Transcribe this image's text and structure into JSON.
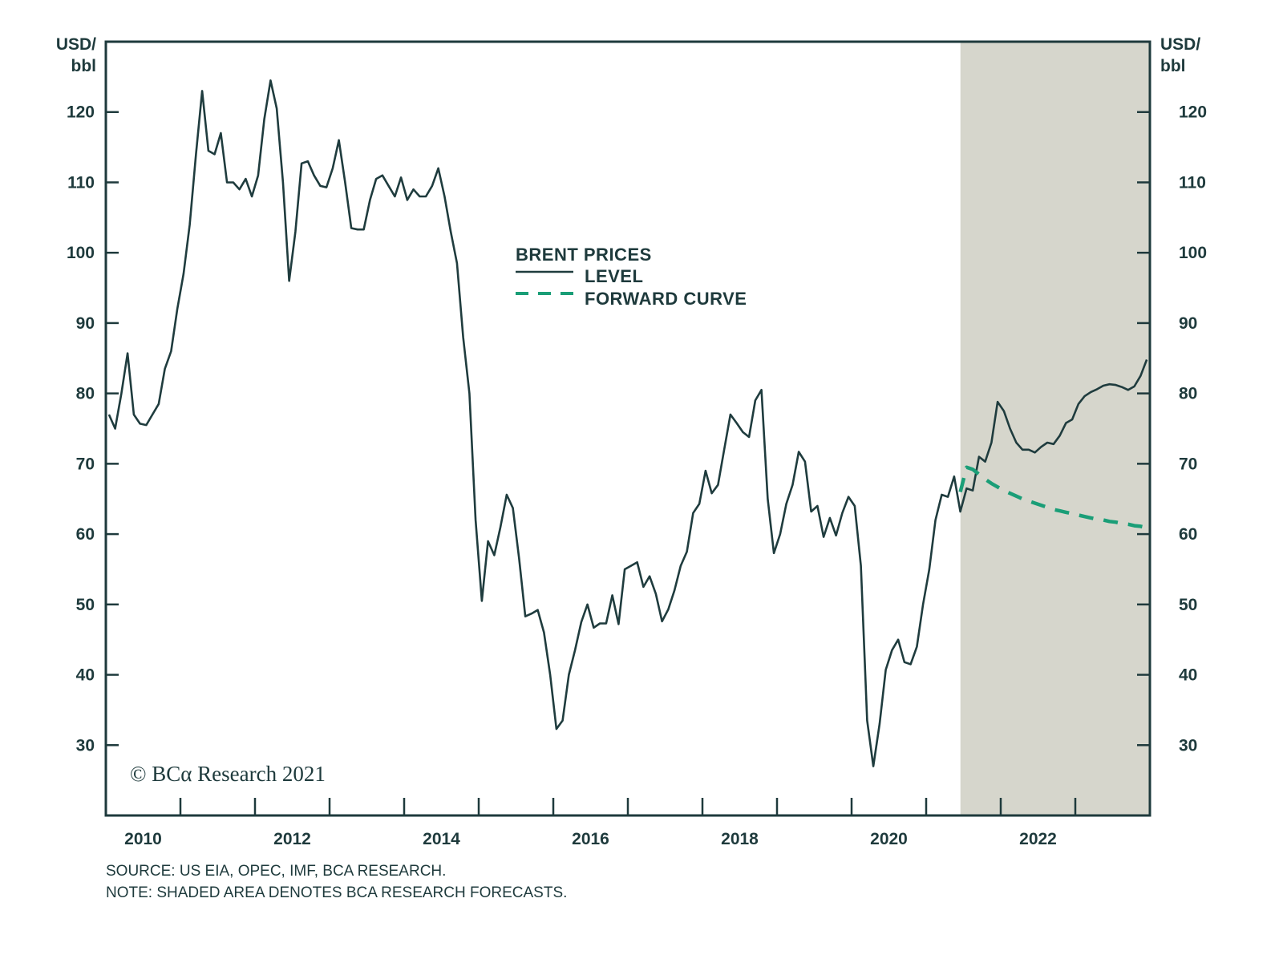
{
  "chart_data": {
    "type": "line",
    "title": "",
    "ylabel_left": "USD/ bbl",
    "ylabel_right": "USD/ bbl",
    "ylim": [
      20,
      130
    ],
    "yticks": [
      30,
      40,
      50,
      60,
      70,
      80,
      90,
      100,
      110,
      120
    ],
    "xlim": [
      "2010-01",
      "2023-12"
    ],
    "xtick_labels": [
      "2010",
      "2012",
      "2014",
      "2016",
      "2018",
      "2020",
      "2022"
    ],
    "grid": false,
    "legend": {
      "title": "BRENT PRICES",
      "placement": "center",
      "entries": [
        "LEVEL",
        "FORWARD CURVE"
      ]
    },
    "shaded_region": {
      "from": "2021-06",
      "to": "2023-12",
      "meaning": "BCA RESEARCH FORECASTS",
      "color": "#d6d6cc"
    },
    "colors": {
      "level": "#1f3c3e",
      "forward_curve": "#1a9e77",
      "text": "#1e3a3c"
    },
    "series": [
      {
        "name": "LEVEL",
        "style": "solid",
        "x": [
          "2010-01",
          "2010-02",
          "2010-03",
          "2010-04",
          "2010-05",
          "2010-06",
          "2010-07",
          "2010-08",
          "2010-09",
          "2010-10",
          "2010-11",
          "2010-12",
          "2011-01",
          "2011-02",
          "2011-03",
          "2011-04",
          "2011-05",
          "2011-06",
          "2011-07",
          "2011-08",
          "2011-09",
          "2011-10",
          "2011-11",
          "2011-12",
          "2012-01",
          "2012-02",
          "2012-03",
          "2012-04",
          "2012-05",
          "2012-06",
          "2012-07",
          "2012-08",
          "2012-09",
          "2012-10",
          "2012-11",
          "2012-12",
          "2013-01",
          "2013-02",
          "2013-03",
          "2013-04",
          "2013-05",
          "2013-06",
          "2013-07",
          "2013-08",
          "2013-09",
          "2013-10",
          "2013-11",
          "2013-12",
          "2014-01",
          "2014-02",
          "2014-03",
          "2014-04",
          "2014-05",
          "2014-06",
          "2014-07",
          "2014-08",
          "2014-09",
          "2014-10",
          "2014-11",
          "2014-12",
          "2015-01",
          "2015-02",
          "2015-03",
          "2015-04",
          "2015-05",
          "2015-06",
          "2015-07",
          "2015-08",
          "2015-09",
          "2015-10",
          "2015-11",
          "2015-12",
          "2016-01",
          "2016-02",
          "2016-03",
          "2016-04",
          "2016-05",
          "2016-06",
          "2016-07",
          "2016-08",
          "2016-09",
          "2016-10",
          "2016-11",
          "2016-12",
          "2017-01",
          "2017-02",
          "2017-03",
          "2017-04",
          "2017-05",
          "2017-06",
          "2017-07",
          "2017-08",
          "2017-09",
          "2017-10",
          "2017-11",
          "2017-12",
          "2018-01",
          "2018-02",
          "2018-03",
          "2018-04",
          "2018-05",
          "2018-06",
          "2018-07",
          "2018-08",
          "2018-09",
          "2018-10",
          "2018-11",
          "2018-12",
          "2019-01",
          "2019-02",
          "2019-03",
          "2019-04",
          "2019-05",
          "2019-06",
          "2019-07",
          "2019-08",
          "2019-09",
          "2019-10",
          "2019-11",
          "2019-12",
          "2020-01",
          "2020-02",
          "2020-03",
          "2020-04",
          "2020-05",
          "2020-06",
          "2020-07",
          "2020-08",
          "2020-09",
          "2020-10",
          "2020-11",
          "2020-12",
          "2021-01",
          "2021-02",
          "2021-03",
          "2021-04",
          "2021-05",
          "2021-06",
          "2021-07",
          "2021-08",
          "2021-09",
          "2021-10",
          "2021-11",
          "2021-12",
          "2022-01",
          "2022-02",
          "2022-03",
          "2022-04",
          "2022-05",
          "2022-06",
          "2022-07",
          "2022-08",
          "2022-09",
          "2022-10",
          "2022-11",
          "2022-12",
          "2023-01",
          "2023-02",
          "2023-03",
          "2023-04",
          "2023-05",
          "2023-06",
          "2023-07",
          "2023-08",
          "2023-09",
          "2023-10",
          "2023-11",
          "2023-12"
        ],
        "y": [
          77,
          75,
          80,
          85.7,
          77,
          75.7,
          75.5,
          77,
          78.5,
          83.5,
          86,
          92,
          97,
          104,
          114,
          123,
          114.5,
          114,
          117,
          110,
          110,
          109,
          110.5,
          108,
          111,
          119,
          124.5,
          120.5,
          110,
          96,
          103,
          112.7,
          113,
          111,
          109.5,
          109.3,
          112,
          116,
          110,
          103.5,
          103.3,
          103.3,
          107.5,
          110.5,
          111,
          109.5,
          108,
          110.7,
          107.5,
          109,
          108,
          108,
          109.5,
          112,
          108,
          103,
          98.5,
          88,
          80,
          62,
          50.5,
          59,
          57,
          61,
          65.6,
          63.7,
          56.5,
          48.3,
          48.7,
          49.2,
          46,
          40,
          32.3,
          33.5,
          40,
          43.5,
          47.5,
          50,
          46.7,
          47.3,
          47.3,
          51.3,
          47.2,
          55,
          55.5,
          56,
          52.5,
          54,
          51.5,
          47.6,
          49.3,
          52,
          55.5,
          57.5,
          63,
          64.3,
          69,
          65.8,
          67,
          72,
          77,
          75.8,
          74.5,
          73.8,
          79,
          80.5,
          65,
          57.3,
          60,
          64.3,
          67,
          71.7,
          70.3,
          63.2,
          64,
          59.6,
          62.3,
          59.8,
          63,
          65.3,
          64,
          55.5,
          33.5,
          27,
          33,
          40.7,
          43.5,
          45,
          41.8,
          41.5,
          44,
          50,
          55,
          62,
          65.6,
          65.3,
          68.2,
          63.2,
          66.5,
          66.2,
          71,
          70.3,
          73,
          78.8,
          77.5,
          75,
          73,
          72,
          72,
          71.6,
          72.4,
          73,
          72.8,
          74,
          75.8,
          76.3,
          78.5,
          79.6,
          80.2,
          80.6,
          81.1,
          81.3,
          81.2,
          80.9,
          80.5,
          81,
          82.5,
          84.8
        ]
      },
      {
        "name": "FORWARD CURVE",
        "style": "dashed",
        "x": [
          "2021-06",
          "2021-07",
          "2021-08",
          "2021-09",
          "2021-10",
          "2021-11",
          "2021-12",
          "2022-01",
          "2022-02",
          "2022-03",
          "2022-04",
          "2022-05",
          "2022-06",
          "2022-07",
          "2022-08",
          "2022-09",
          "2022-10",
          "2022-11",
          "2022-12",
          "2023-01",
          "2023-02",
          "2023-03",
          "2023-04",
          "2023-05",
          "2023-06",
          "2023-07",
          "2023-08",
          "2023-09",
          "2023-10",
          "2023-11",
          "2023-12"
        ],
        "y": [
          66,
          69.5,
          69.2,
          68.5,
          67.8,
          67.2,
          66.7,
          66.2,
          65.8,
          65.4,
          65.0,
          64.7,
          64.4,
          64.1,
          63.8,
          63.5,
          63.3,
          63.1,
          62.9,
          62.7,
          62.5,
          62.3,
          62.1,
          62.0,
          61.8,
          61.7,
          61.5,
          61.4,
          61.2,
          61.1,
          60.9
        ]
      }
    ]
  },
  "copyright": "© BCα Research 2021",
  "footer": {
    "source": "SOURCE: US EIA, OPEC, IMF, BCA RESEARCH.",
    "note": "NOTE: SHADED AREA DENOTES BCA RESEARCH FORECASTS."
  }
}
